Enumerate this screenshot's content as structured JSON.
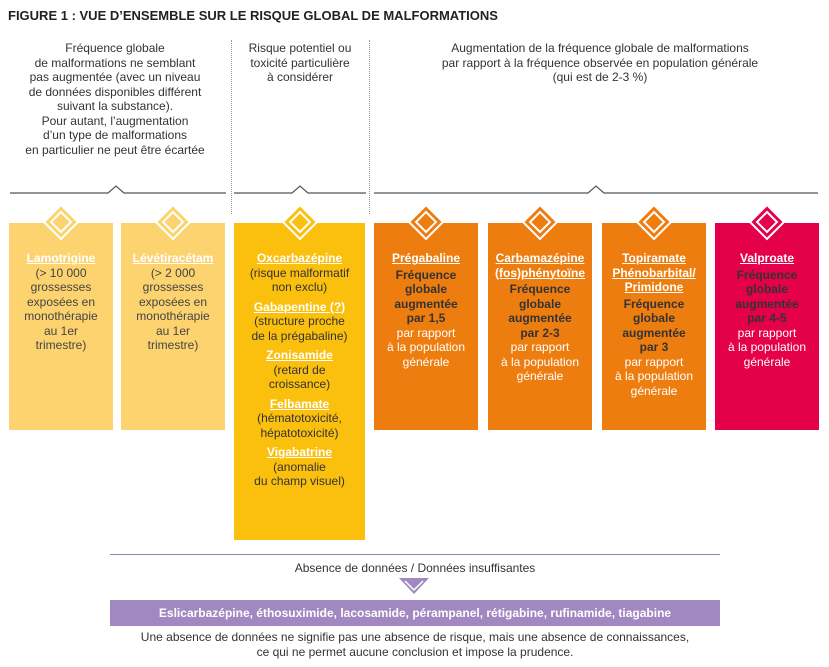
{
  "title": "FIGURE 1 : VUE D’ENSEMBLE SUR LE RISQUE GLOBAL DE MALFORMATIONS",
  "headers": {
    "col1": "Fréquence globale\nde malformations ne semblant\npas augmentée (avec un niveau\nde données disponibles différent\nsuivant la substance).\nPour autant, l’augmentation\nd’un type de malformations\nen particulier ne peut être écartée",
    "col2": "Risque potentiel ou\ntoxicité particulière\nà considérer",
    "col3": "Augmentation de la fréquence globale de malformations\npar rapport à la fréquence observée en population générale\n(qui est de 2-3 %)"
  },
  "cards": {
    "lamotrigine": {
      "drug": "Lamotrigine",
      "text": "(> 10 000\ngrossesses\nexposées en\nmonothérapie\nau 1er\ntrimestre)"
    },
    "levetiracetam": {
      "drug": "Lévétiracétam",
      "text": "(> 2 000\ngrossesses\nexposées en\nmonothérapie\nau 1er\ntrimestre)"
    },
    "mid": {
      "oxcarbazepine": {
        "drug": "Oxcarbazépine",
        "text": "(risque malformatif\nnon exclu)"
      },
      "gabapentine": {
        "drug": "Gabapentine (?)",
        "text": "(structure proche\nde la prégabaline)"
      },
      "zonisamide": {
        "drug": "Zonisamide",
        "text": "(retard de\ncroissance)"
      },
      "felbamate": {
        "drug": "Felbamate",
        "text": "(hématotoxicité,\nhépatotoxicité)"
      },
      "vigabatrine": {
        "drug": "Vigabatrine",
        "text": "(anomalie\ndu champ visuel)"
      }
    },
    "pregabaline": {
      "drug": "Prégabaline",
      "strong": "Fréquence\nglobale\naugmentée\npar 1,5",
      "text": "par rapport\nà la population\ngénérale"
    },
    "carbamazepine": {
      "drug": "Carbamazépine\n(fos)phénytoïne",
      "strong": "Fréquence\nglobale\naugmentée\npar 2-3",
      "text": "par rapport\nà la population\ngénérale"
    },
    "topiramate": {
      "drug": "Topiramate\nPhénobarbital/\nPrimidone",
      "strong": "Fréquence\nglobale\naugmentée\npar 3",
      "text": "par rapport\nà la population\ngénérale"
    },
    "valproate": {
      "drug": "Valproate",
      "strong": "Fréquence\nglobale\naugmentée\npar 4-5",
      "text": "par rapport\nà la population\ngénérale"
    }
  },
  "absence": {
    "label": "Absence de données / Données insuffisantes",
    "drugs": "Eslicarbazépine, éthosuximide, lacosamide, pérampanel, rétigabine, rufinamide, tiagabine",
    "footnote": "Une absence de données ne signifie pas une absence de risque, mais une absence de connaissances,\nce qui ne permet aucune conclusion et impose la prudence."
  },
  "colors": {
    "light_yellow": "#fcd36e",
    "yellow": "#fbbf0d",
    "orange": "#ee7d10",
    "red": "#e4004a",
    "purple": "#a288c0",
    "arrow_gray": "#d6d6d8"
  }
}
